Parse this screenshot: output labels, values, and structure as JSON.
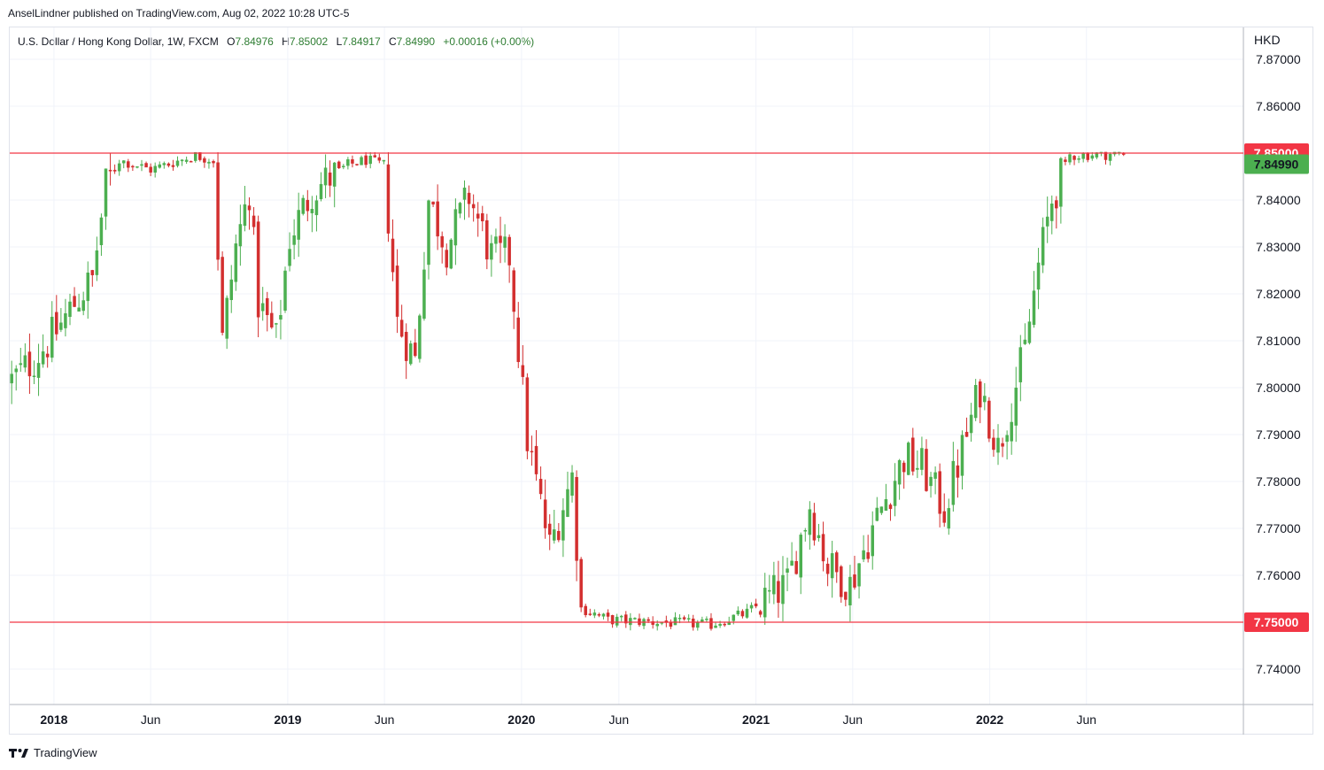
{
  "publisher_line": "AnselLindner published on TradingView.com, Aug 02, 2022 10:28 UTC-5",
  "legend": {
    "symbol": "U.S. Dollar / Hong Kong Dollar, 1W, FXCM",
    "o_label": "O",
    "o": "7.84976",
    "h_label": "H",
    "h": "7.85002",
    "l_label": "L",
    "l": "7.84917",
    "c_label": "C",
    "c": "7.84990",
    "change": "+0.00016 (+0.00%)"
  },
  "currency_label": "HKD",
  "footer_brand": "TradingView",
  "colors": {
    "up": "#26a69a",
    "up_body": "#4caf50",
    "down": "#d32f2f",
    "level_line": "#f23645",
    "last_price": "#4caf50"
  },
  "chart_data": {
    "type": "candlestick",
    "y_range": [
      7.735,
      7.875
    ],
    "y_ticks": [
      "7.74000",
      "7.76000",
      "7.77000",
      "7.78000",
      "7.79000",
      "7.80000",
      "7.81000",
      "7.82000",
      "7.83000",
      "7.84000",
      "7.86000",
      "7.87000"
    ],
    "x_ticks": [
      {
        "label": "2018",
        "date": "2018-01-01",
        "bold": true
      },
      {
        "label": "Jun",
        "date": "2018-06-01",
        "bold": false
      },
      {
        "label": "2019",
        "date": "2019-01-01",
        "bold": true
      },
      {
        "label": "Jun",
        "date": "2019-06-01",
        "bold": false
      },
      {
        "label": "2020",
        "date": "2020-01-01",
        "bold": true
      },
      {
        "label": "Jun",
        "date": "2020-06-01",
        "bold": false
      },
      {
        "label": "2021",
        "date": "2021-01-01",
        "bold": true
      },
      {
        "label": "Jun",
        "date": "2021-06-01",
        "bold": false
      },
      {
        "label": "2022",
        "date": "2022-01-01",
        "bold": true
      },
      {
        "label": "Jun",
        "date": "2022-06-01",
        "bold": false
      }
    ],
    "x_range": [
      "2017-10-24",
      "2023-02-01"
    ],
    "horizontal_levels": [
      {
        "value": 7.85,
        "label": "7.85000"
      },
      {
        "value": 7.75,
        "label": "7.75000"
      }
    ],
    "last_price": {
      "value": 7.8499,
      "label": "7.84990"
    },
    "weekly_close_path": [
      {
        "date": "2017-10-27",
        "close": 7.8015
      },
      {
        "date": "2017-12-01",
        "close": 7.806
      },
      {
        "date": "2018-01-05",
        "close": 7.812
      },
      {
        "date": "2018-02-02",
        "close": 7.818
      },
      {
        "date": "2018-03-02",
        "close": 7.823
      },
      {
        "date": "2018-03-23",
        "close": 7.843
      },
      {
        "date": "2018-04-13",
        "close": 7.8485
      },
      {
        "date": "2018-06-01",
        "close": 7.8465
      },
      {
        "date": "2018-08-10",
        "close": 7.8495
      },
      {
        "date": "2018-09-07",
        "close": 7.8485
      },
      {
        "date": "2018-09-21",
        "close": 7.81
      },
      {
        "date": "2018-10-12",
        "close": 7.83
      },
      {
        "date": "2018-11-02",
        "close": 7.842
      },
      {
        "date": "2018-11-16",
        "close": 7.818
      },
      {
        "date": "2018-12-14",
        "close": 7.81
      },
      {
        "date": "2019-01-04",
        "close": 7.832
      },
      {
        "date": "2019-02-08",
        "close": 7.842
      },
      {
        "date": "2019-04-05",
        "close": 7.8475
      },
      {
        "date": "2019-05-03",
        "close": 7.8485
      },
      {
        "date": "2019-05-31",
        "close": 7.8475
      },
      {
        "date": "2019-06-21",
        "close": 7.814
      },
      {
        "date": "2019-07-19",
        "close": 7.806
      },
      {
        "date": "2019-08-09",
        "close": 7.84
      },
      {
        "date": "2019-09-06",
        "close": 7.83
      },
      {
        "date": "2019-10-11",
        "close": 7.841
      },
      {
        "date": "2019-11-15",
        "close": 7.828
      },
      {
        "date": "2019-12-13",
        "close": 7.828
      },
      {
        "date": "2020-01-10",
        "close": 7.789
      },
      {
        "date": "2020-02-14",
        "close": 7.766
      },
      {
        "date": "2020-03-20",
        "close": 7.781
      },
      {
        "date": "2020-04-03",
        "close": 7.753
      },
      {
        "date": "2020-05-15",
        "close": 7.7505
      },
      {
        "date": "2020-07-31",
        "close": 7.75
      },
      {
        "date": "2020-10-23",
        "close": 7.7495
      },
      {
        "date": "2020-12-18",
        "close": 7.752
      },
      {
        "date": "2021-02-19",
        "close": 7.758
      },
      {
        "date": "2021-03-26",
        "close": 7.775
      },
      {
        "date": "2021-04-23",
        "close": 7.762
      },
      {
        "date": "2021-05-28",
        "close": 7.758
      },
      {
        "date": "2021-07-02",
        "close": 7.77
      },
      {
        "date": "2021-08-20",
        "close": 7.785
      },
      {
        "date": "2021-09-17",
        "close": 7.783
      },
      {
        "date": "2021-10-22",
        "close": 7.774
      },
      {
        "date": "2021-11-26",
        "close": 7.79
      },
      {
        "date": "2021-12-17",
        "close": 7.8
      },
      {
        "date": "2022-01-14",
        "close": 7.787
      },
      {
        "date": "2022-02-04",
        "close": 7.797
      },
      {
        "date": "2022-02-25",
        "close": 7.808
      },
      {
        "date": "2022-03-18",
        "close": 7.826
      },
      {
        "date": "2022-04-08",
        "close": 7.84
      },
      {
        "date": "2022-05-06",
        "close": 7.8495
      },
      {
        "date": "2022-07-29",
        "close": 7.8499
      }
    ]
  }
}
